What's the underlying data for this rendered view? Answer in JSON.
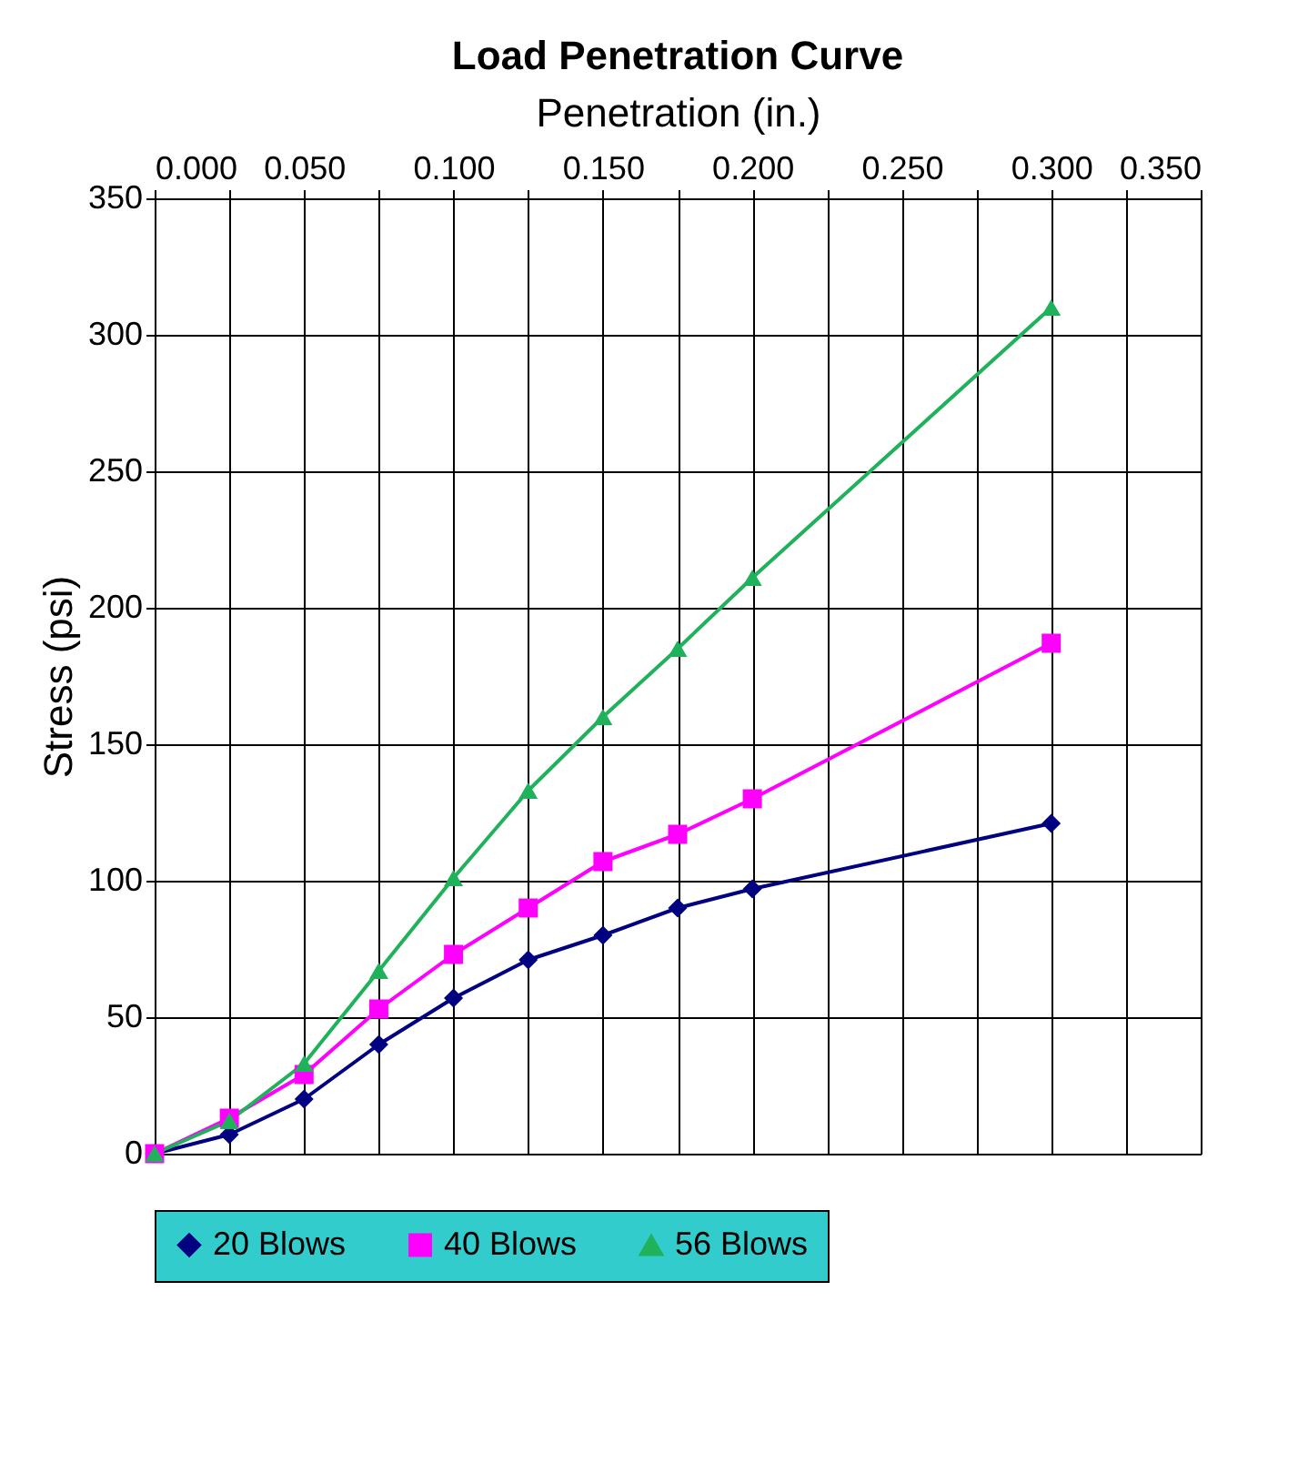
{
  "chart_data": {
    "type": "line",
    "title": "Load Penetration Curve",
    "xlabel": "Penetration (in.)",
    "ylabel": "Stress (psi)",
    "x": [
      0,
      0.025,
      0.05,
      0.075,
      0.1,
      0.125,
      0.15,
      0.175,
      0.2,
      0.3
    ],
    "series": [
      {
        "name": "20 Blows",
        "color": "#000080",
        "marker": "diamond",
        "values": [
          0,
          7,
          20,
          40,
          57,
          71,
          80,
          90,
          97,
          121
        ]
      },
      {
        "name": "40 Blows",
        "color": "#ff00ff",
        "marker": "square",
        "values": [
          0,
          13,
          29,
          53,
          73,
          90,
          107,
          117,
          130,
          187
        ]
      },
      {
        "name": "56 Blows",
        "color": "#1fb25a",
        "marker": "triangle",
        "values": [
          0,
          12,
          33,
          67,
          101,
          133,
          160,
          185,
          211,
          310
        ]
      }
    ],
    "xlim": [
      0,
      0.35
    ],
    "xticks": [
      {
        "value": 0,
        "label": "0.000"
      },
      {
        "value": 0.025,
        "label": null
      },
      {
        "value": 0.05,
        "label": "0.050"
      },
      {
        "value": 0.075,
        "label": null
      },
      {
        "value": 0.1,
        "label": "0.100"
      },
      {
        "value": 0.125,
        "label": null
      },
      {
        "value": 0.15,
        "label": "0.150"
      },
      {
        "value": 0.175,
        "label": null
      },
      {
        "value": 0.2,
        "label": "0.200"
      },
      {
        "value": 0.225,
        "label": null
      },
      {
        "value": 0.25,
        "label": "0.250"
      },
      {
        "value": 0.275,
        "label": null
      },
      {
        "value": 0.3,
        "label": "0.300"
      },
      {
        "value": 0.325,
        "label": null
      },
      {
        "value": 0.35,
        "label": "0.350"
      }
    ],
    "ylim": [
      0,
      350
    ],
    "yticks": [
      0,
      50,
      100,
      150,
      200,
      250,
      300,
      350
    ],
    "grid": true,
    "legend": "bottom",
    "line_style": "solid"
  }
}
